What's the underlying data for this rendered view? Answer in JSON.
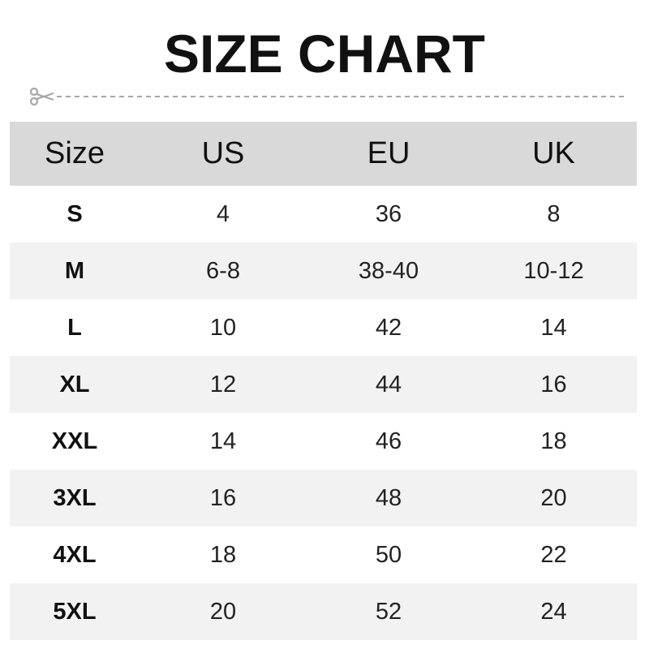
{
  "title": "SIZE CHART",
  "colors": {
    "header_bg": "#d9d9d9",
    "stripe_bg": "#f2f2f2",
    "cutline": "#a6a6a6"
  },
  "icons": {
    "cut": "scissors-icon"
  },
  "chart_data": {
    "type": "table",
    "title": "SIZE CHART",
    "columns": [
      "Size",
      "US",
      "EU",
      "UK"
    ],
    "rows": [
      [
        "S",
        "4",
        "36",
        "8"
      ],
      [
        "M",
        "6-8",
        "38-40",
        "10-12"
      ],
      [
        "L",
        "10",
        "42",
        "14"
      ],
      [
        "XL",
        "12",
        "44",
        "16"
      ],
      [
        "XXL",
        "14",
        "46",
        "18"
      ],
      [
        "3XL",
        "16",
        "48",
        "20"
      ],
      [
        "4XL",
        "18",
        "50",
        "22"
      ],
      [
        "5XL",
        "20",
        "52",
        "24"
      ]
    ]
  }
}
